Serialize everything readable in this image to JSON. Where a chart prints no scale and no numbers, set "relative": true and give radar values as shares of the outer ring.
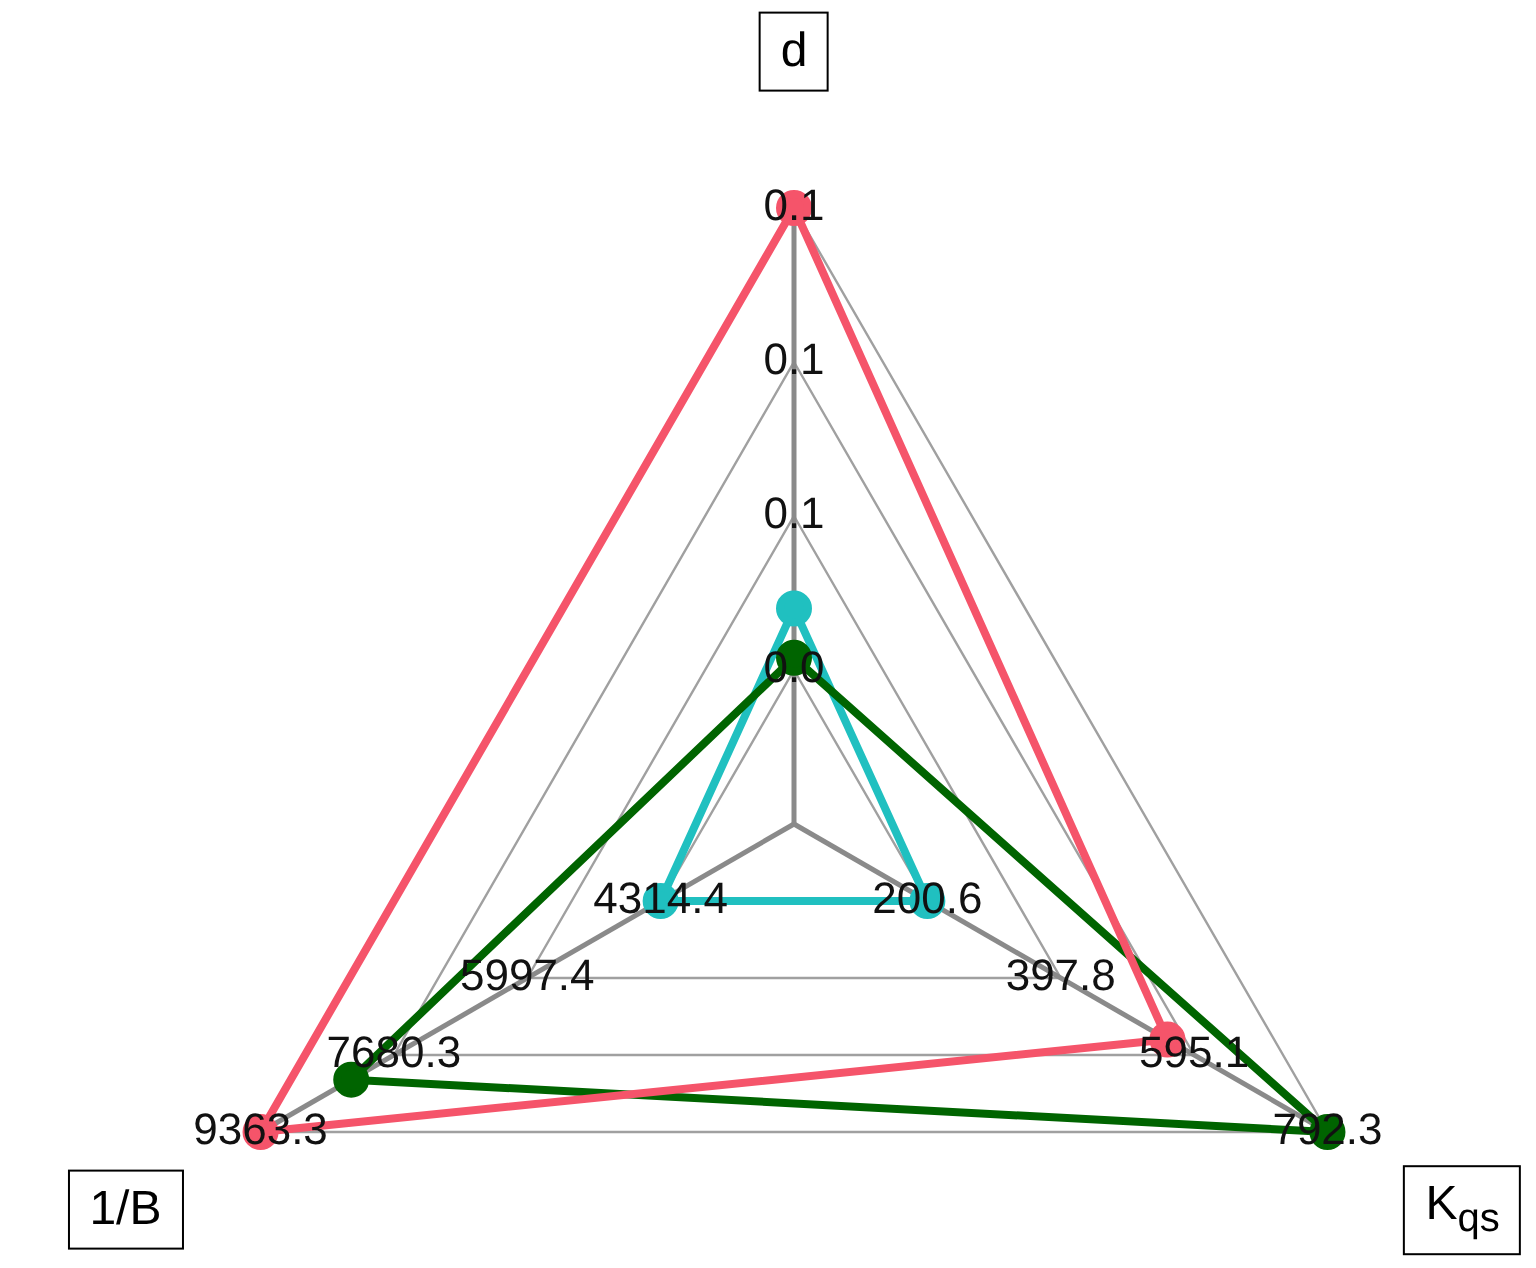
{
  "chart_data": {
    "type": "radar",
    "relative": true,
    "grid": true,
    "legend": false,
    "marker": "circle",
    "categories": [
      "d",
      "K$_{qs}$",
      "1/B"
    ],
    "series": [
      {
        "color": "#f5546a",
        "values": [
          1.0,
          0.7,
          1.0
        ]
      },
      {
        "color": "#006400",
        "values": [
          0.27,
          1.0,
          0.83
        ]
      },
      {
        "color": "#20c0c0",
        "values": [
          0.35,
          0.25,
          0.25
        ]
      }
    ],
    "annotations": [
      "0.0",
      "0.1",
      "0.1",
      "0.1",
      "200.6",
      "397.8",
      "595.1",
      "792.3",
      "4314.4",
      "5997.4",
      "7680.3",
      "9363.3"
    ]
  }
}
